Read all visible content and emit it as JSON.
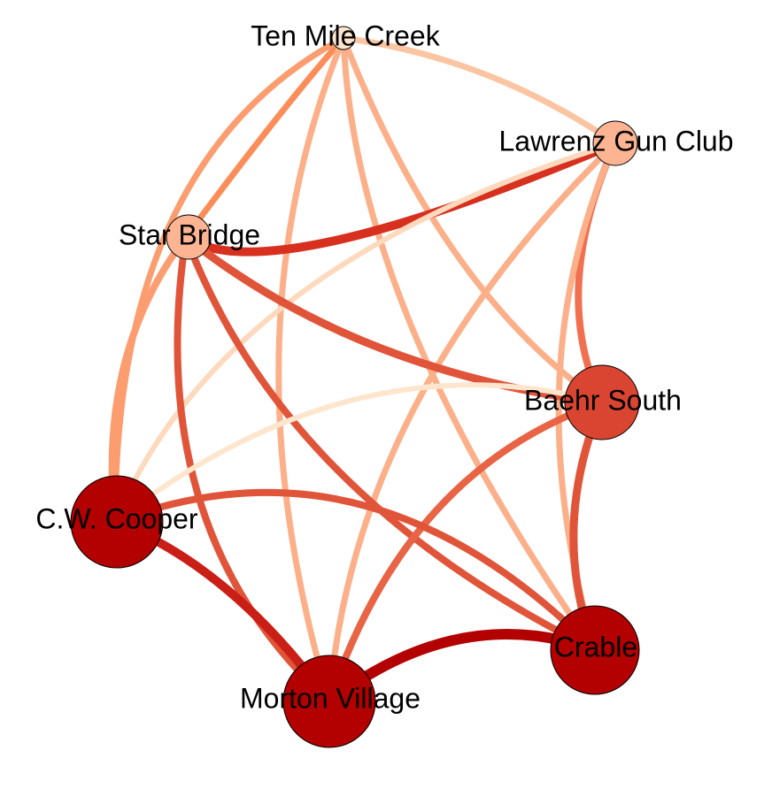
{
  "nodes": [
    {
      "id": "ten_mile",
      "label": "Ten Mile Creek",
      "color": "#fee6ce"
    },
    {
      "id": "lawrenz",
      "label": "Lawrenz Gun Club",
      "color": "#fcb492"
    },
    {
      "id": "star",
      "label": "Star Bridge",
      "color": "#fcb492"
    },
    {
      "id": "baehr",
      "label": "Baehr South",
      "color": "#d94530"
    },
    {
      "id": "cooper",
      "label": "C.W. Cooper",
      "color": "#b30000"
    },
    {
      "id": "morton",
      "label": "Morton Village",
      "color": "#b30000"
    },
    {
      "id": "crable",
      "label": "Crable",
      "color": "#b30000"
    }
  ],
  "edges": [
    {
      "source": "ten_mile",
      "target": "lawrenz",
      "color": "#fcc5a2"
    },
    {
      "source": "ten_mile",
      "target": "star",
      "color": "#fc8d59"
    },
    {
      "source": "ten_mile",
      "target": "baehr",
      "color": "#fcb08a"
    },
    {
      "source": "ten_mile",
      "target": "cooper",
      "color": "#fc9d70"
    },
    {
      "source": "ten_mile",
      "target": "morton",
      "color": "#fcb08a"
    },
    {
      "source": "ten_mile",
      "target": "crable",
      "color": "#fcb08a"
    },
    {
      "source": "lawrenz",
      "target": "star",
      "color": "#d7301f"
    },
    {
      "source": "lawrenz",
      "target": "baehr",
      "color": "#f07050"
    },
    {
      "source": "lawrenz",
      "target": "cooper",
      "color": "#fdd9bd"
    },
    {
      "source": "lawrenz",
      "target": "morton",
      "color": "#fcb08a"
    },
    {
      "source": "lawrenz",
      "target": "crable",
      "color": "#fcb08a"
    },
    {
      "source": "star",
      "target": "baehr",
      "color": "#e0553a"
    },
    {
      "source": "star",
      "target": "cooper",
      "color": "#fc9d70"
    },
    {
      "source": "star",
      "target": "morton",
      "color": "#e0553a"
    },
    {
      "source": "star",
      "target": "crable",
      "color": "#e0553a"
    },
    {
      "source": "baehr",
      "target": "cooper",
      "color": "#fee6ce"
    },
    {
      "source": "baehr",
      "target": "morton",
      "color": "#e86445"
    },
    {
      "source": "baehr",
      "target": "crable",
      "color": "#e0553a"
    },
    {
      "source": "cooper",
      "target": "morton",
      "color": "#c91f16"
    },
    {
      "source": "cooper",
      "target": "crable",
      "color": "#e0553a"
    },
    {
      "source": "morton",
      "target": "crable",
      "color": "#b30000"
    }
  ]
}
